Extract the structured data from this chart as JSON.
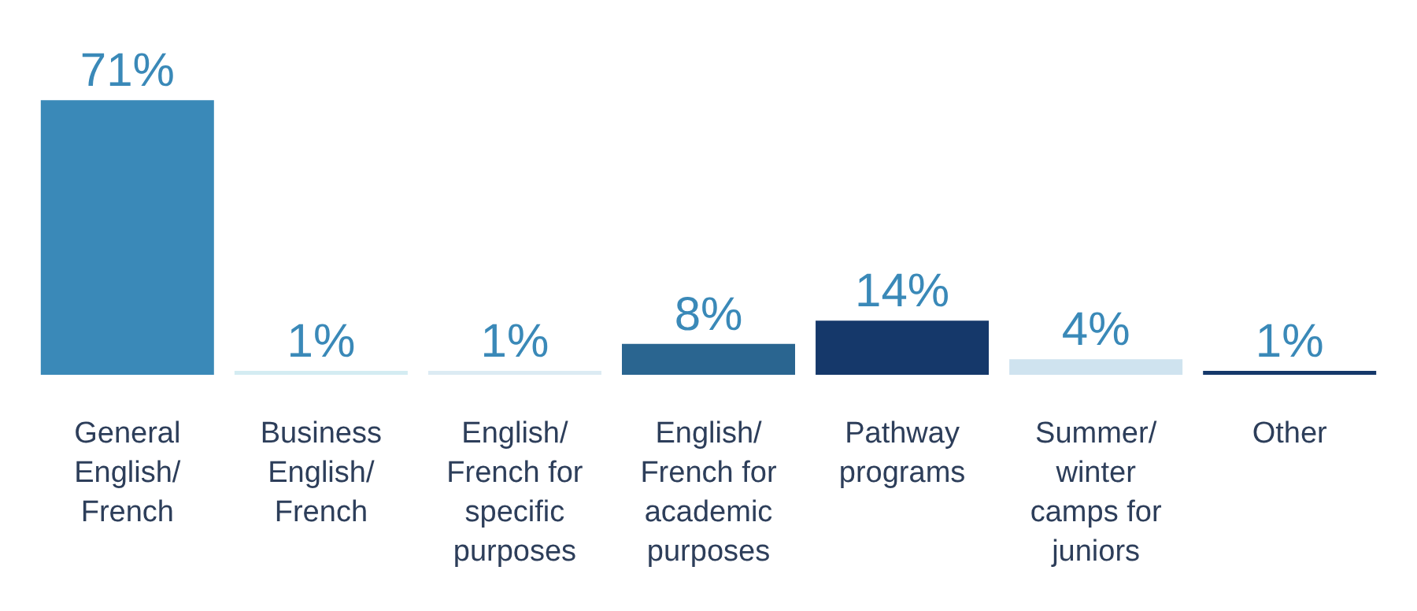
{
  "chart_data": {
    "type": "bar",
    "categories": [
      "General English/ French",
      "Business English/ French",
      "English/ French for specific purposes",
      "English/ French for academic purposes",
      "Pathway programs",
      "Summer/ winter camps for juniors",
      "Other"
    ],
    "values": [
      71,
      1,
      1,
      8,
      14,
      4,
      1
    ],
    "colors": [
      "#3a89b8",
      "#d4ecf2",
      "#dcebf3",
      "#2a6590",
      "#15386a",
      "#cfe3ef",
      "#15386a"
    ],
    "value_labels": [
      "71%",
      "1%",
      "1%",
      "8%",
      "14%",
      "4%",
      "1%"
    ]
  }
}
